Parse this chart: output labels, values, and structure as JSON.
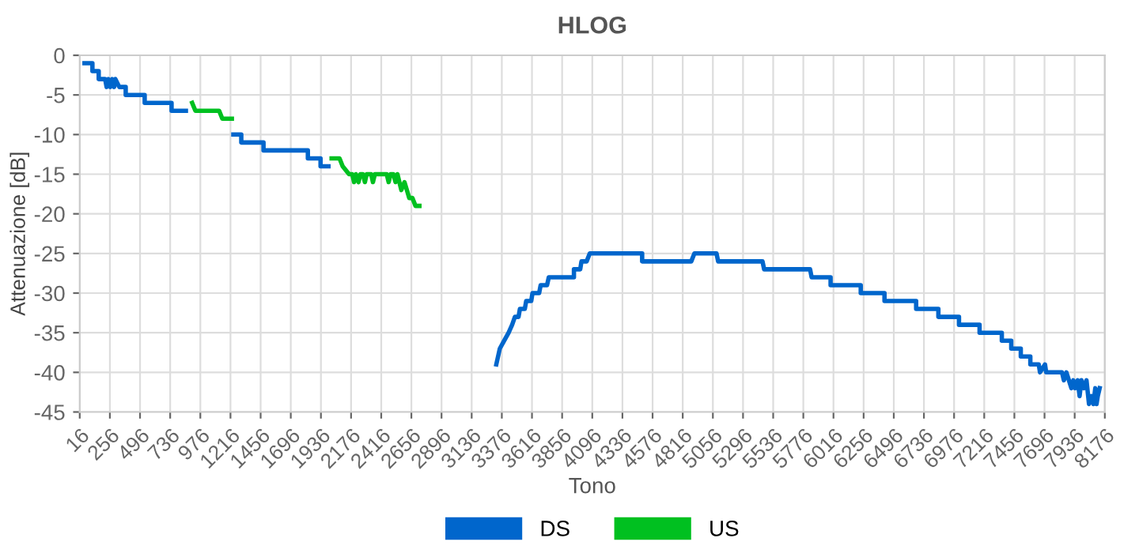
{
  "chart_data": {
    "type": "line",
    "title": "HLOG",
    "xlabel": "Tono",
    "ylabel": "Attenuazione [dB]",
    "xlim": [
      16,
      8176
    ],
    "xticks": [
      16,
      256,
      496,
      736,
      976,
      1216,
      1456,
      1696,
      1936,
      2176,
      2416,
      2656,
      2896,
      3136,
      3376,
      3616,
      3856,
      4096,
      4336,
      4576,
      4816,
      5056,
      5296,
      5536,
      5776,
      6016,
      6256,
      6496,
      6736,
      6976,
      7216,
      7456,
      7696,
      7936,
      8176
    ],
    "ylim": [
      -45,
      0
    ],
    "yticks": [
      -45,
      -40,
      -35,
      -30,
      -25,
      -20,
      -15,
      -10,
      -5,
      0
    ],
    "grid": true,
    "legend": "bottom",
    "marker": "none",
    "line_style": "solid",
    "series": [
      {
        "name": "DS",
        "color": "#0066cc",
        "x": [
          54,
          117,
          117,
          167,
          167,
          218,
          230,
          245,
          260,
          275,
          290,
          300,
          331,
          382,
          382,
          533,
          533,
          747,
          747,
          861,
          1000,
          1239,
          1302,
          1302,
          1479,
          1479,
          1832,
          1832,
          1933,
          1933,
          1996,
          2500,
          3332,
          3360,
          3395,
          3430,
          3458,
          3480,
          3509,
          3520,
          3559,
          3570,
          3610,
          3620,
          3673,
          3685,
          3736,
          3750,
          3950,
          3950,
          4000,
          4010,
          4051,
          4076,
          4493,
          4493,
          4884,
          4909,
          5085,
          5098,
          5451,
          5464,
          5830,
          5842,
          5993,
          5993,
          6233,
          6233,
          6422,
          6422,
          6674,
          6674,
          6851,
          6851,
          7015,
          7015,
          7179,
          7179,
          7356,
          7356,
          7431,
          7431,
          7507,
          7507,
          7583,
          7583,
          7650,
          7660,
          7700,
          7709,
          7835,
          7850,
          7870,
          7890,
          7910,
          7925,
          7940,
          7960,
          7975,
          7990,
          8010,
          8030,
          8050,
          8070,
          8085,
          8100,
          8110,
          8120,
          8135
        ],
        "values": [
          -1,
          -1,
          -2,
          -2,
          -3,
          -3,
          -4,
          -3,
          -4,
          -3,
          -4,
          -3,
          -4,
          -4,
          -5,
          -5,
          -6,
          -6,
          -7,
          -7,
          null,
          -10,
          -10,
          -11,
          -11,
          -12,
          -12,
          -13,
          -13,
          -14,
          -14,
          null,
          -39,
          -37,
          -36,
          -35,
          -34,
          -33,
          -33,
          -32,
          -32,
          -31,
          -31,
          -30,
          -30,
          -29,
          -29,
          -28,
          -28,
          -27,
          -27,
          -26,
          -26,
          -25,
          -25,
          -26,
          -26,
          -25,
          -25,
          -26,
          -26,
          -27,
          -27,
          -28,
          -28,
          -29,
          -29,
          -30,
          -30,
          -31,
          -31,
          -32,
          -32,
          -33,
          -33,
          -34,
          -34,
          -35,
          -35,
          -36,
          -36,
          -37,
          -37,
          -38,
          -38,
          -39,
          -39,
          -40,
          -39,
          -40,
          -40,
          -41,
          -40,
          -41,
          -42,
          -41,
          -42,
          -41,
          -43,
          -41,
          -42,
          -41,
          -44,
          -43,
          -44,
          -42,
          -44,
          -43,
          -42
        ]
      },
      {
        "name": "US",
        "color": "#00c020",
        "x": [
          911,
          937,
          1126,
          1151,
          1227,
          1600,
          2021,
          2084,
          2109,
          2160,
          2185,
          2200,
          2215,
          2235,
          2250,
          2270,
          2286,
          2300,
          2336,
          2350,
          2365,
          2412,
          2440,
          2460,
          2475,
          2490,
          2513,
          2530,
          2545,
          2576,
          2601,
          2620,
          2639,
          2664,
          2689,
          2720
        ],
        "values": [
          -6,
          -7,
          -7,
          -8,
          -8,
          null,
          -13,
          -13,
          -14,
          -15,
          -15,
          -16,
          -15,
          -16,
          -15,
          -15,
          -16,
          -15,
          -15,
          -16,
          -15,
          -15,
          -15,
          -15,
          -16,
          -15,
          -15,
          -16,
          -15,
          -17,
          -16,
          -17,
          -18,
          -18,
          -19,
          -19
        ]
      }
    ]
  }
}
